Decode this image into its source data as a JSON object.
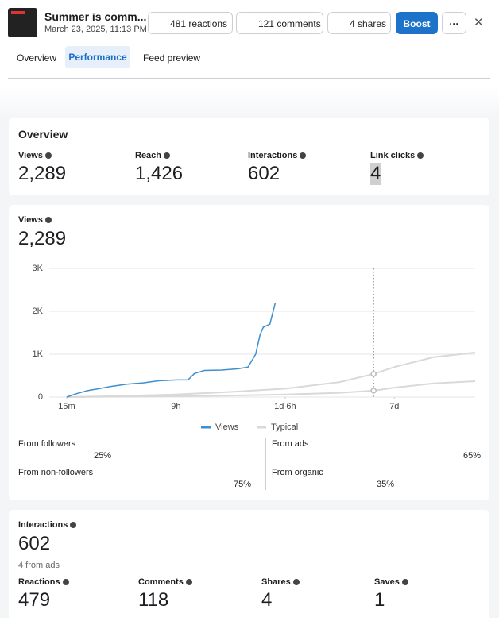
{
  "header": {
    "title": "Summer is comm...",
    "date": "March 23, 2025, 11:13 PM",
    "buttons": {
      "reactions": "481 reactions",
      "comments": "121 comments",
      "shares": "4 shares",
      "boost": "Boost"
    }
  },
  "tabs": [
    "Overview",
    "Performance",
    "Feed preview"
  ],
  "overview": {
    "title": "Overview",
    "metrics": [
      {
        "label": "Views",
        "value": "2,289"
      },
      {
        "label": "Reach",
        "value": "1,426"
      },
      {
        "label": "Interactions",
        "value": "602"
      },
      {
        "label": "Link clicks",
        "value": "4"
      }
    ]
  },
  "views": {
    "label": "Views",
    "value": "2,289",
    "chart_data": {
      "type": "line",
      "xlim": [
        -1.6,
        37.4
      ],
      "xticks": [
        {
          "value": 0,
          "label": "15m"
        },
        {
          "value": 10,
          "label": "9h"
        },
        {
          "value": 20,
          "label": "1d 6h"
        },
        {
          "value": 30,
          "label": "7d"
        }
      ],
      "ylim": [
        0,
        3000
      ],
      "yticks": [
        0,
        {
          "value": 1000,
          "label": "1K"
        },
        {
          "value": 2000,
          "label": "2K"
        },
        {
          "value": 3000,
          "label": "3K"
        }
      ],
      "grid": true,
      "series": [
        {
          "name": "Views",
          "color": "#3d8fcf",
          "x": [
            0,
            0.9,
            1.9,
            3,
            4.1,
            5.5,
            7,
            8.4,
            10,
            11.1,
            11.7,
            12.6,
            14.2,
            15.7,
            16.6,
            17.3,
            17.7,
            18,
            18.6,
            19.1
          ],
          "values": [
            0,
            80,
            150,
            200,
            250,
            300,
            330,
            380,
            400,
            400,
            550,
            620,
            630,
            660,
            700,
            1000,
            1450,
            1630,
            1700,
            2200
          ]
        },
        {
          "name": "Typical",
          "color": "#d9d9d9",
          "x": [
            0,
            5,
            10,
            15,
            20.1,
            25,
            28.1,
            30,
            33.6,
            37.4
          ],
          "values": [
            0,
            25,
            60,
            120,
            200,
            350,
            540,
            700,
            930,
            1040
          ],
          "lower": [
            0,
            10,
            20,
            35,
            60,
            100,
            150,
            220,
            320,
            370
          ]
        }
      ]
    },
    "breakdown": [
      {
        "label": "From followers",
        "value": "25%"
      },
      {
        "label": "From non-followers",
        "value": "75%"
      },
      {
        "label": "From ads",
        "value": "65%"
      },
      {
        "label": "From organic",
        "value": "35%"
      }
    ]
  },
  "interactions": {
    "label": "Interactions",
    "value": "602",
    "note": "4 from ads",
    "metrics": [
      {
        "label": "Reactions",
        "value": "479"
      },
      {
        "label": "Comments",
        "value": "118"
      },
      {
        "label": "Shares",
        "value": "4"
      },
      {
        "label": "Saves",
        "value": "1"
      }
    ]
  }
}
